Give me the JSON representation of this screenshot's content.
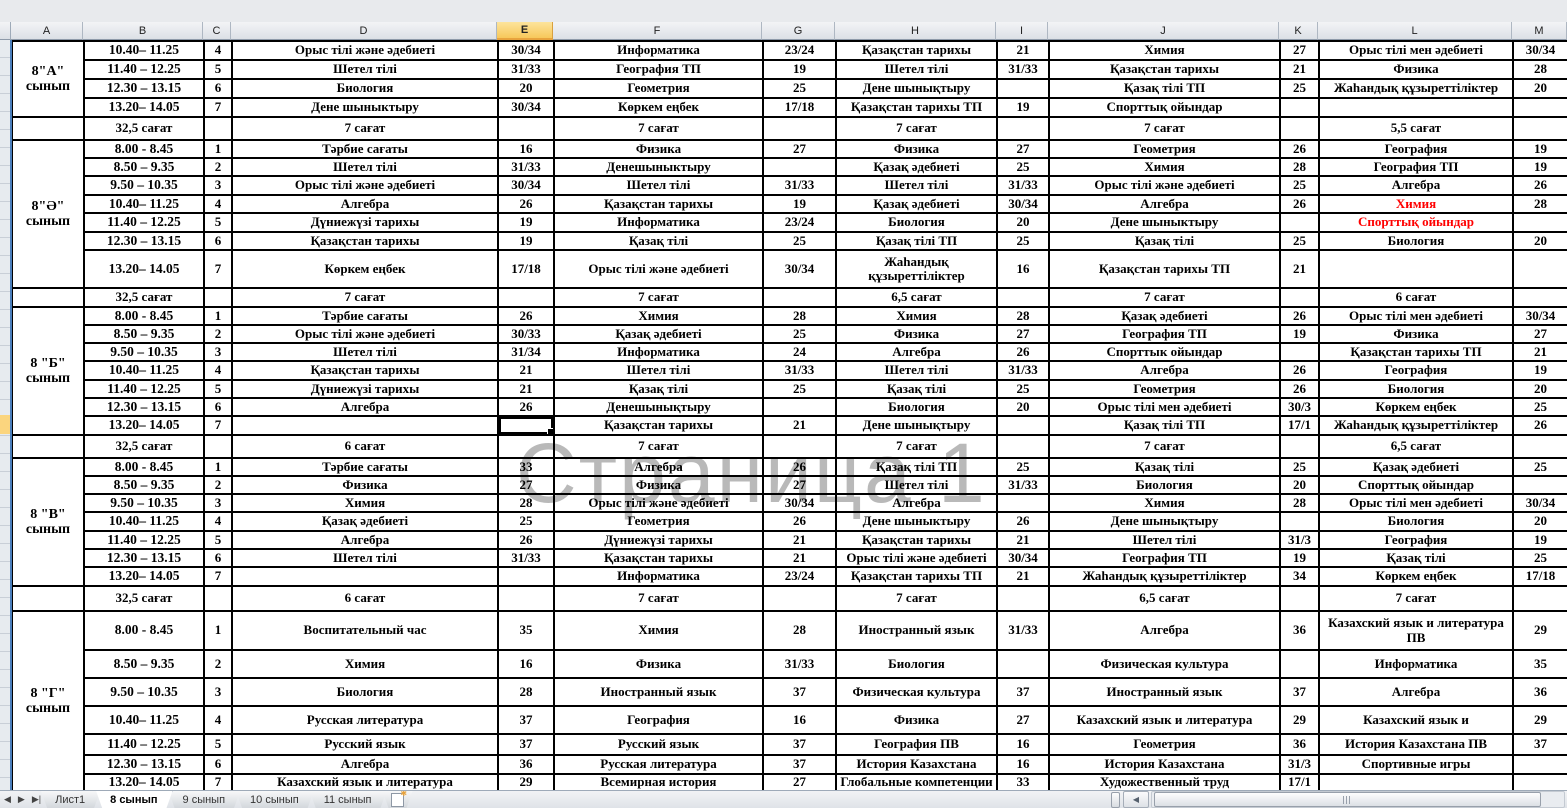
{
  "watermark": "Страница 1",
  "columns": [
    "A",
    "B",
    "C",
    "D",
    "E",
    "F",
    "G",
    "H",
    "I",
    "J",
    "K",
    "L",
    "M"
  ],
  "selected_column": "E",
  "colors": {
    "red_text": "#FF0000",
    "watermark_gray": "#808080",
    "selected_header_orange": "#F7C85B",
    "page_break_blue": "#4A7EBB"
  },
  "sections": [
    {
      "label": "8\"А\"",
      "label2": "сынып",
      "week_total": "32,5 сағат",
      "rows": [
        {
          "time": "10.40– 11.25",
          "n": "4",
          "l": [
            {
              "s": "Орыс тілі және әдебиеті",
              "r": "30/34"
            },
            {
              "s": "Информатика",
              "r": "23/24"
            },
            {
              "s": "Қазақстан тарихы",
              "r": "21"
            },
            {
              "s": "Химия",
              "r": "27"
            },
            {
              "s": "Орыс тілі мен әдебиеті",
              "r": "30/34"
            }
          ]
        },
        {
          "time": "11.40 – 12.25",
          "n": "5",
          "l": [
            {
              "s": "Шетел тілі",
              "r": "31/33"
            },
            {
              "s": "География ТП",
              "r": "19"
            },
            {
              "s": "Шетел тілі",
              "r": "31/33"
            },
            {
              "s": "Қазақстан тарихы",
              "r": "21"
            },
            {
              "s": "Физика",
              "r": "28"
            }
          ]
        },
        {
          "time": "12.30 – 13.15",
          "n": "6",
          "l": [
            {
              "s": "Биология",
              "r": "20"
            },
            {
              "s": "Геометрия",
              "r": "25"
            },
            {
              "s": "Дене шынықтыру",
              "r": ""
            },
            {
              "s": "Қазақ тілі ТП",
              "r": "25"
            },
            {
              "s": "Жаһандық құзыреттіліктер",
              "r": "20"
            }
          ]
        },
        {
          "time": "13.20– 14.05",
          "n": "7",
          "l": [
            {
              "s": "Дене шыныктыру",
              "r": "30/34"
            },
            {
              "s": "Көркем еңбек",
              "r": "17/18"
            },
            {
              "s": "Қазақстан тарихы ТП",
              "r": "19"
            },
            {
              "s": "Спорттық ойындар",
              "r": ""
            },
            {
              "s": "",
              "r": ""
            }
          ]
        }
      ],
      "summary": [
        "7 сағат",
        "7 сағат",
        "7 сағат",
        "7 сағат",
        "5,5 сағат"
      ]
    },
    {
      "label": "8\"Ә\"",
      "label2": "сынып",
      "week_total": "32,5 сағат",
      "rows": [
        {
          "time": "8.00 - 8.45",
          "n": "1",
          "l": [
            {
              "s": "Тәрбие сағаты",
              "r": "16"
            },
            {
              "s": "Физика",
              "r": "27"
            },
            {
              "s": "Физика",
              "r": "27"
            },
            {
              "s": "Геометрия",
              "r": "26"
            },
            {
              "s": "География",
              "r": "19"
            }
          ]
        },
        {
          "time": "8.50 – 9.35",
          "n": "2",
          "l": [
            {
              "s": "Шетел тілі",
              "r": "31/33"
            },
            {
              "s": "Денешыныктыру",
              "r": ""
            },
            {
              "s": "Қазақ әдебиеті",
              "r": "25"
            },
            {
              "s": "Химия",
              "r": "28"
            },
            {
              "s": "География ТП",
              "r": "19"
            }
          ]
        },
        {
          "time": "9.50 – 10.35",
          "n": "3",
          "l": [
            {
              "s": "Орыс тілі және әдебиеті",
              "r": "30/34"
            },
            {
              "s": "Шетел тілі",
              "r": "31/33"
            },
            {
              "s": "Шетел тілі",
              "r": "31/33"
            },
            {
              "s": "Орыс тілі және әдебиеті",
              "r": "25"
            },
            {
              "s": "Алгебра",
              "r": "26"
            }
          ]
        },
        {
          "time": "10.40– 11.25",
          "n": "4",
          "l": [
            {
              "s": "Алгебра",
              "r": "26"
            },
            {
              "s": "Қазақстан тарихы",
              "r": "19"
            },
            {
              "s": "Қазақ әдебиеті",
              "r": "30/34"
            },
            {
              "s": "Алгебра",
              "r": "26"
            },
            {
              "s": "Химия",
              "r": "28",
              "red": true
            }
          ]
        },
        {
          "time": "11.40 – 12.25",
          "n": "5",
          "l": [
            {
              "s": "Дүниежүзі тарихы",
              "r": "19"
            },
            {
              "s": "Информатика",
              "r": "23/24"
            },
            {
              "s": "Биология",
              "r": "20"
            },
            {
              "s": "Дене шыныктыру",
              "r": ""
            },
            {
              "s": "Спорттық ойындар",
              "r": "",
              "red": true
            }
          ]
        },
        {
          "time": "12.30 – 13.15",
          "n": "6",
          "l": [
            {
              "s": "Қазақстан тарихы",
              "r": "19"
            },
            {
              "s": "Қазақ тілі",
              "r": "25"
            },
            {
              "s": "Қазақ тілі ТП",
              "r": "25"
            },
            {
              "s": "Қазақ тілі",
              "r": "25"
            },
            {
              "s": "Биология",
              "r": "20"
            }
          ]
        },
        {
          "time": "13.20– 14.05",
          "n": "7",
          "l": [
            {
              "s": "Көркем еңбек",
              "r": "17/18"
            },
            {
              "s": "Орыс тілі және әдебиеті",
              "r": "30/34"
            },
            {
              "s": "Жаһандық құзыреттіліктер",
              "r": "16",
              "wrap": true
            },
            {
              "s": "Қазақстан тарихы ТП",
              "r": "21"
            },
            {
              "s": "",
              "r": ""
            }
          ]
        }
      ],
      "summary": [
        "7 сағат",
        "7 сағат",
        "6,5 сағат",
        "7 сағат",
        "6 сағат"
      ]
    },
    {
      "label": "8 \"Б\"",
      "label2": "сынып",
      "week_total": "32,5 сағат",
      "rows": [
        {
          "time": "8.00 - 8.45",
          "n": "1",
          "l": [
            {
              "s": "Тәрбие сағаты",
              "r": "26"
            },
            {
              "s": "Химия",
              "r": "28"
            },
            {
              "s": "Химия",
              "r": "28"
            },
            {
              "s": "Қазақ әдебиеті",
              "r": "26"
            },
            {
              "s": "Орыс тілі мен әдебиеті",
              "r": "30/34"
            }
          ]
        },
        {
          "time": "8.50 – 9.35",
          "n": "2",
          "l": [
            {
              "s": "Орыс тілі және әдебиеті",
              "r": "30/33"
            },
            {
              "s": "Қазақ әдебиеті",
              "r": "25"
            },
            {
              "s": "Физика",
              "r": "27"
            },
            {
              "s": "География ТП",
              "r": "19"
            },
            {
              "s": "Физика",
              "r": "27"
            }
          ]
        },
        {
          "time": "9.50 – 10.35",
          "n": "3",
          "l": [
            {
              "s": "Шетел тілі",
              "r": "31/34"
            },
            {
              "s": "Информатика",
              "r": "24"
            },
            {
              "s": "Алгебра",
              "r": "26"
            },
            {
              "s": "Спорттык ойындар",
              "r": ""
            },
            {
              "s": "Қазақстан тарихы ТП",
              "r": "21"
            }
          ]
        },
        {
          "time": "10.40– 11.25",
          "n": "4",
          "l": [
            {
              "s": "Қазақстан тарихы",
              "r": "21"
            },
            {
              "s": "Шетел тілі",
              "r": "31/33"
            },
            {
              "s": "Шетел тілі",
              "r": "31/33"
            },
            {
              "s": "Алгебра",
              "r": "26"
            },
            {
              "s": "География",
              "r": "19"
            }
          ]
        },
        {
          "time": "11.40 – 12.25",
          "n": "5",
          "l": [
            {
              "s": "Дүниежүзі тарихы",
              "r": "21"
            },
            {
              "s": "Қазақ тілі",
              "r": "25"
            },
            {
              "s": "Қазақ тілі",
              "r": "25"
            },
            {
              "s": "Геометрия",
              "r": "26"
            },
            {
              "s": "Биология",
              "r": "20"
            }
          ]
        },
        {
          "time": "12.30 – 13.15",
          "n": "6",
          "l": [
            {
              "s": "Алгебра",
              "r": "26"
            },
            {
              "s": "Денешынықтыру",
              "r": ""
            },
            {
              "s": "Биология",
              "r": "20"
            },
            {
              "s": "Орыс тілі мен әдебиеті",
              "r": "30/3"
            },
            {
              "s": "Көркем еңбек",
              "r": "25"
            }
          ]
        },
        {
          "time": "13.20– 14.05",
          "n": "7",
          "l": [
            {
              "s": "",
              "r": "",
              "sel": true
            },
            {
              "s": "Қазақстан тарихы",
              "r": "21"
            },
            {
              "s": "Дене шынықтыру",
              "r": ""
            },
            {
              "s": "Қазақ тілі ТП",
              "r": "17/1"
            },
            {
              "s": "Жаһандық құзыреттіліктер",
              "r": "26"
            }
          ]
        }
      ],
      "summary": [
        "6 сағат",
        "7 сағат",
        "7 сағат",
        "7  сағат",
        "6,5 сағат"
      ]
    },
    {
      "label": "8 \"В\"",
      "label2": "сынып",
      "week_total": "32,5 сағат",
      "rows": [
        {
          "time": "8.00 - 8.45",
          "n": "1",
          "l": [
            {
              "s": "Тәрбие сағаты",
              "r": "33"
            },
            {
              "s": "Алгебра",
              "r": "26"
            },
            {
              "s": "Қазақ тілі  ТП",
              "r": "25"
            },
            {
              "s": "Қазақ тілі",
              "r": "25"
            },
            {
              "s": "Қазақ әдебиеті",
              "r": "25"
            }
          ]
        },
        {
          "time": "8.50 – 9.35",
          "n": "2",
          "l": [
            {
              "s": "Физика",
              "r": "27"
            },
            {
              "s": "Физика",
              "r": "27"
            },
            {
              "s": "Шетел тілі",
              "r": "31/33"
            },
            {
              "s": "Биология",
              "r": "20"
            },
            {
              "s": "Спорттық ойындар",
              "r": ""
            }
          ]
        },
        {
          "time": "9.50 – 10.35",
          "n": "3",
          "l": [
            {
              "s": "Химия",
              "r": "28"
            },
            {
              "s": "Орыс тілі және әдебиеті",
              "r": "30/34"
            },
            {
              "s": "Алгебра",
              "r": ""
            },
            {
              "s": "Химия",
              "r": "28"
            },
            {
              "s": "Орыс тілі мен әдебиеті",
              "r": "30/34"
            }
          ]
        },
        {
          "time": "10.40– 11.25",
          "n": "4",
          "l": [
            {
              "s": "Қазақ әдебиеті",
              "r": "25"
            },
            {
              "s": "Геометрия",
              "r": "26"
            },
            {
              "s": "Дене шыныктыру",
              "r": "26"
            },
            {
              "s": "Дене шынықтыру",
              "r": ""
            },
            {
              "s": "Биология",
              "r": "20"
            }
          ]
        },
        {
          "time": "11.40 – 12.25",
          "n": "5",
          "l": [
            {
              "s": "Алгебра",
              "r": "26"
            },
            {
              "s": "Дүниежүзі тарихы",
              "r": "21"
            },
            {
              "s": "Қазақстан тарихы",
              "r": "21"
            },
            {
              "s": "Шетел тілі",
              "r": "31/3"
            },
            {
              "s": "География",
              "r": "19"
            }
          ]
        },
        {
          "time": "12.30 – 13.15",
          "n": "6",
          "l": [
            {
              "s": "Шетел тілі",
              "r": "31/33"
            },
            {
              "s": "Қазақстан тарихы",
              "r": "21"
            },
            {
              "s": "Орыс тілі және әдебиеті",
              "r": "30/34"
            },
            {
              "s": "География ТП",
              "r": "19"
            },
            {
              "s": "Қазақ тілі",
              "r": "25"
            }
          ]
        },
        {
          "time": "13.20– 14.05",
          "n": "7",
          "l": [
            {
              "s": "",
              "r": ""
            },
            {
              "s": "Информатика",
              "r": "23/24"
            },
            {
              "s": "Қазақстан тарихы ТП",
              "r": "21"
            },
            {
              "s": "Жаһандық құзыреттіліктер",
              "r": "34"
            },
            {
              "s": "Көркем еңбек",
              "r": "17/18"
            }
          ]
        }
      ],
      "summary": [
        "6 сағат",
        "7 сағат",
        "7 сағат",
        "6,5 сағат",
        "7 сағат"
      ]
    },
    {
      "label": "8  \"Г\"",
      "label2": "сынып",
      "week_total": "",
      "rows": [
        {
          "time": "8.00 - 8.45",
          "n": "1",
          "l": [
            {
              "s": "Воспитательный час",
              "r": "35"
            },
            {
              "s": "Химия",
              "r": "28"
            },
            {
              "s": "Иностранный язык",
              "r": "31/33"
            },
            {
              "s": "Алгебра",
              "r": "36"
            },
            {
              "s": "Казахский язык и литература  ПВ",
              "r": "29",
              "wrap": true
            }
          ]
        },
        {
          "time": "8.50 – 9.35",
          "n": "2",
          "l": [
            {
              "s": "Химия",
              "r": "16"
            },
            {
              "s": "Физика",
              "r": "31/33"
            },
            {
              "s": "Биология",
              "r": ""
            },
            {
              "s": "Физическая культура",
              "r": ""
            },
            {
              "s": "Информатика",
              "r": "35"
            }
          ]
        },
        {
          "time": "9.50 – 10.35",
          "n": "3",
          "l": [
            {
              "s": "Биология",
              "r": "28"
            },
            {
              "s": "Иностранный язык",
              "r": "37"
            },
            {
              "s": "Физическая культура",
              "r": "37"
            },
            {
              "s": "Иностранный язык",
              "r": "37"
            },
            {
              "s": "Алгебра",
              "r": "36"
            }
          ]
        },
        {
          "time": "10.40– 11.25",
          "n": "4",
          "l": [
            {
              "s": "Русская литература",
              "r": "37"
            },
            {
              "s": "География",
              "r": "16"
            },
            {
              "s": "Физика",
              "r": "27"
            },
            {
              "s": "Казахский язык и литература",
              "r": "29"
            },
            {
              "s": "Казахский язык и",
              "r": "29"
            }
          ]
        },
        {
          "time": "11.40 – 12.25",
          "n": "5",
          "l": [
            {
              "s": "Русский язык",
              "r": "37"
            },
            {
              "s": "Русский язык",
              "r": "37"
            },
            {
              "s": "География ПВ",
              "r": "16"
            },
            {
              "s": "Геометрия",
              "r": "36"
            },
            {
              "s": "История Казахстана ПВ",
              "r": "37"
            }
          ]
        },
        {
          "time": "12.30 – 13.15",
          "n": "6",
          "l": [
            {
              "s": "Алгебра",
              "r": "36"
            },
            {
              "s": "Русская литература",
              "r": "37"
            },
            {
              "s": "История Казахстана",
              "r": "16"
            },
            {
              "s": "История Казахстана",
              "r": "31/3"
            },
            {
              "s": "Спортивные игры",
              "r": ""
            }
          ]
        },
        {
          "time": "13.20– 14.05",
          "n": "7",
          "l": [
            {
              "s": "Казахский язык и литература",
              "r": "29"
            },
            {
              "s": "Всемирная история",
              "r": "27"
            },
            {
              "s": "Глобальные компетенции",
              "r": "33"
            },
            {
              "s": "Художественный труд",
              "r": "17/1"
            },
            {
              "s": "",
              "r": ""
            }
          ]
        }
      ],
      "summary": null
    }
  ],
  "tabbar": {
    "nav": [
      {
        "name": "tab-nav-prev-icon",
        "glyph": "◀"
      },
      {
        "name": "tab-nav-next-icon",
        "glyph": "▶"
      },
      {
        "name": "tab-nav-last-icon",
        "glyph": "▶|"
      }
    ],
    "tabs": [
      {
        "label": "Лист1",
        "active": false
      },
      {
        "label": "8 сынып",
        "active": true
      },
      {
        "label": "9 сынып",
        "active": false
      },
      {
        "label": "10 сынып",
        "active": false
      },
      {
        "label": "11 сынып",
        "active": false
      }
    ],
    "insert_sheet_icon": "insert-worksheet-icon"
  },
  "scrollbar": {
    "left_arrow": "◀"
  }
}
